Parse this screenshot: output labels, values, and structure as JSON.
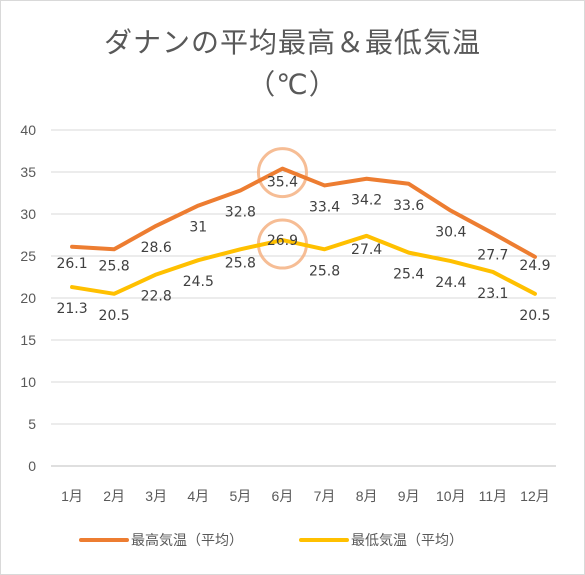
{
  "chart_data": {
    "type": "line",
    "title": "ダナンの平均最高＆最低気温",
    "subtitle": "（℃）",
    "categories": [
      "1月",
      "2月",
      "3月",
      "4月",
      "5月",
      "6月",
      "7月",
      "8月",
      "9月",
      "10月",
      "11月",
      "12月"
    ],
    "series": [
      {
        "name": "最高気温（平均）",
        "color": "#ED7D31",
        "values": [
          26.1,
          25.8,
          28.6,
          31,
          32.8,
          35.4,
          33.4,
          34.2,
          33.6,
          30.4,
          27.7,
          24.9
        ]
      },
      {
        "name": "最低気温（平均）",
        "color": "#FFC000",
        "values": [
          21.3,
          20.5,
          22.8,
          24.5,
          25.8,
          26.9,
          25.8,
          27.4,
          25.4,
          24.4,
          23.1,
          20.5
        ]
      }
    ],
    "ylim": [
      0,
      40
    ],
    "yticks": [
      0,
      5,
      10,
      15,
      20,
      25,
      30,
      35,
      40
    ],
    "grid": true,
    "legend": "bottom",
    "highlight_category": "6月",
    "highlight_color": "#F4B183"
  }
}
